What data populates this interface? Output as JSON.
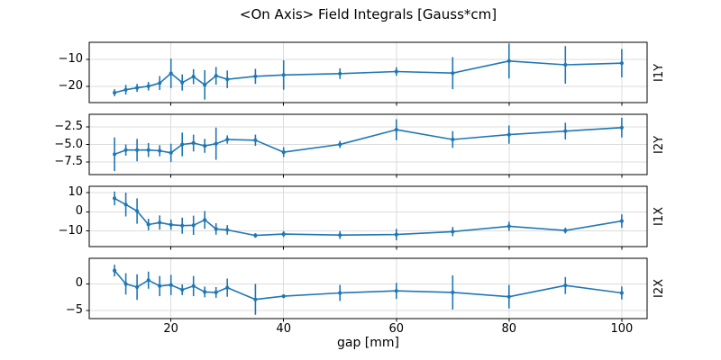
{
  "figure": {
    "title": "<On Axis> Field Integrals [Gauss*cm]",
    "xlabel": "gap [mm]",
    "line_color": "#1f77b4",
    "grid_color": "#dcdcdc",
    "axis_color": "#000000",
    "background": "#ffffff"
  },
  "chart_data": {
    "type": "line",
    "title": "<On Axis> Field Integrals [Gauss*cm]",
    "xlabel": "gap [mm]",
    "ylabel_units": "Gauss*cm",
    "grid": true,
    "legend": "none",
    "error_bars": true,
    "x": [
      10,
      12,
      14,
      16,
      18,
      20,
      22,
      24,
      26,
      28,
      30,
      35,
      40,
      50,
      60,
      70,
      80,
      90,
      100
    ],
    "xlim": [
      5.5,
      104.5
    ],
    "xticks": [
      20,
      40,
      60,
      80,
      100
    ],
    "xtick_labels": [
      "20",
      "40",
      "60",
      "80",
      "100"
    ],
    "series": [
      {
        "name": "I1Y",
        "ylim": [
          -26.1,
          -3.6
        ],
        "ytick_values": [
          -10,
          -20
        ],
        "ytick_labels": [
          "−10",
          "−20"
        ],
        "values": [
          -22.4,
          -21.3,
          -20.6,
          -20.0,
          -18.8,
          -15.2,
          -18.6,
          -16.4,
          -19.5,
          -16.1,
          -17.4,
          -16.3,
          -15.8,
          -15.3,
          -14.5,
          -15.1,
          -10.6,
          -12.0,
          -11.4
        ],
        "errors": [
          1.3,
          1.8,
          1.5,
          1.6,
          2.6,
          5.5,
          3.0,
          2.8,
          5.5,
          3.3,
          3.3,
          2.8,
          5.5,
          2.0,
          1.6,
          6.0,
          6.5,
          7.0,
          5.3
        ]
      },
      {
        "name": "I2Y",
        "ylim": [
          -9.3,
          -0.7
        ],
        "ytick_values": [
          -2.5,
          -5.0,
          -7.5
        ],
        "ytick_labels": [
          "−2.5",
          "−5.0",
          "−7.5"
        ],
        "values": [
          -6.4,
          -5.8,
          -5.8,
          -5.8,
          -5.9,
          -6.2,
          -5.0,
          -4.8,
          -5.2,
          -4.9,
          -4.3,
          -4.4,
          -6.1,
          -5.0,
          -2.9,
          -4.3,
          -3.6,
          -3.1,
          -2.6
        ],
        "errors": [
          2.4,
          0.8,
          1.6,
          1.0,
          0.8,
          1.3,
          1.7,
          1.2,
          1.0,
          2.3,
          0.6,
          0.8,
          0.7,
          0.5,
          1.5,
          1.2,
          1.3,
          1.2,
          1.4
        ]
      },
      {
        "name": "I1X",
        "ylim": [
          -18.1,
          13.3
        ],
        "ytick_values": [
          10,
          0,
          -10
        ],
        "ytick_labels": [
          "10",
          "0",
          "−10"
        ],
        "values": [
          7.0,
          3.8,
          0.4,
          -6.6,
          -5.6,
          -6.7,
          -7.2,
          -7.0,
          -4.2,
          -8.9,
          -9.4,
          -12.3,
          -11.6,
          -12.1,
          -11.8,
          -10.3,
          -7.5,
          -9.7,
          -4.8
        ],
        "errors": [
          3.6,
          6.2,
          6.6,
          3.0,
          3.7,
          2.7,
          4.2,
          5.0,
          4.6,
          3.0,
          2.5,
          1.2,
          1.5,
          2.0,
          3.0,
          2.4,
          2.4,
          1.5,
          3.5
        ]
      },
      {
        "name": "I2X",
        "ylim": [
          -6.5,
          4.8
        ],
        "ytick_values": [
          0,
          -5
        ],
        "ytick_labels": [
          "0",
          "−5"
        ],
        "values": [
          2.5,
          0.0,
          -0.6,
          0.7,
          -0.4,
          -0.2,
          -1.1,
          -0.4,
          -1.5,
          -1.6,
          -0.7,
          -2.9,
          -2.3,
          -1.7,
          -1.3,
          -1.6,
          -2.4,
          -0.3,
          -1.7
        ],
        "errors": [
          1.1,
          2.0,
          2.4,
          1.6,
          1.9,
          1.9,
          1.0,
          1.9,
          1.0,
          1.0,
          1.7,
          2.9,
          0.3,
          1.5,
          1.5,
          3.2,
          2.2,
          1.6,
          1.2
        ]
      }
    ]
  }
}
